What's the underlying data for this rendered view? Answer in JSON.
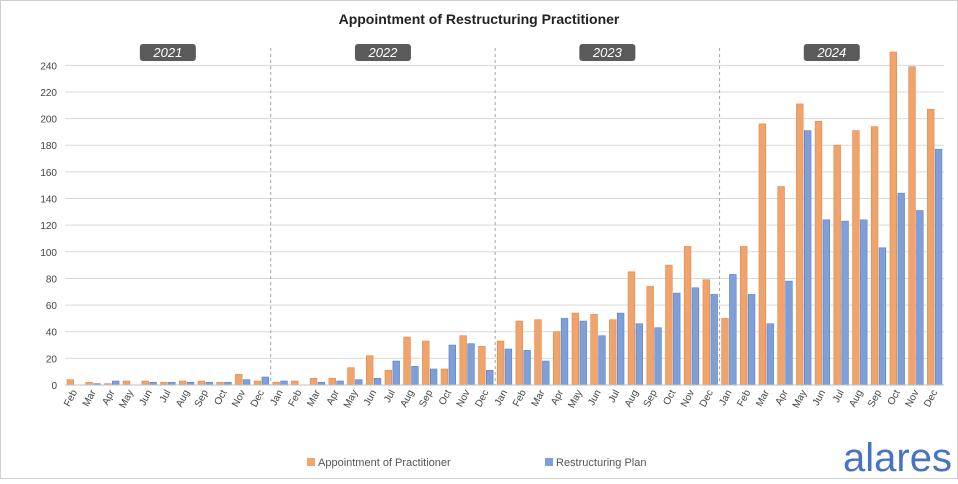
{
  "brand": {
    "name": "alares",
    "color": "#4a72c4"
  },
  "chart_data": {
    "type": "bar",
    "title": "Appointment of Restructuring Practitioner",
    "xlabel": "",
    "ylabel": "",
    "ylim": [
      0,
      250
    ],
    "yticks": [
      0,
      20,
      40,
      60,
      80,
      100,
      120,
      140,
      160,
      180,
      200,
      220,
      240
    ],
    "grid": true,
    "legend_position": "bottom",
    "year_groups": [
      {
        "label": "2021",
        "count": 11
      },
      {
        "label": "2022",
        "count": 12
      },
      {
        "label": "2023",
        "count": 12
      },
      {
        "label": "2024",
        "count": 12
      }
    ],
    "categories": [
      "Feb",
      "Mar",
      "Apr",
      "May",
      "Jun",
      "Jul",
      "Aug",
      "Sep",
      "Oct",
      "Nov",
      "Dec",
      "Jan",
      "Feb",
      "Mar",
      "Apr",
      "May",
      "Jun",
      "Jul",
      "Aug",
      "Sep",
      "Oct",
      "Nov",
      "Dec",
      "Jan",
      "Feb",
      "Mar",
      "Apr",
      "May",
      "Jun",
      "Jul",
      "Aug",
      "Sep",
      "Oct",
      "Nov",
      "Dec",
      "Jan",
      "Feb",
      "Mar",
      "Apr",
      "May",
      "Jun",
      "Jul",
      "Aug",
      "Sep",
      "Oct",
      "Nov",
      "Dec"
    ],
    "series": [
      {
        "name": "Appointment of Practitioner",
        "color": "#f0a46c",
        "values": [
          4,
          2,
          1,
          3,
          3,
          2,
          3,
          3,
          2,
          8,
          3,
          2,
          3,
          5,
          5,
          13,
          22,
          11,
          36,
          33,
          12,
          37,
          29,
          33,
          48,
          49,
          40,
          54,
          53,
          49,
          85,
          74,
          90,
          104,
          79,
          50,
          104,
          196,
          149,
          211,
          198,
          180,
          191,
          194,
          250,
          239,
          207
        ]
      },
      {
        "name": "Restructuring Plan",
        "color": "#7f9fd8",
        "values": [
          0,
          1,
          3,
          0,
          2,
          2,
          2,
          2,
          2,
          4,
          6,
          3,
          0,
          2,
          3,
          4,
          5,
          18,
          14,
          12,
          30,
          31,
          11,
          27,
          26,
          18,
          50,
          48,
          37,
          54,
          46,
          43,
          69,
          73,
          68,
          83,
          68,
          46,
          78,
          191,
          124,
          123,
          124,
          103,
          144,
          131,
          177
        ]
      }
    ]
  }
}
